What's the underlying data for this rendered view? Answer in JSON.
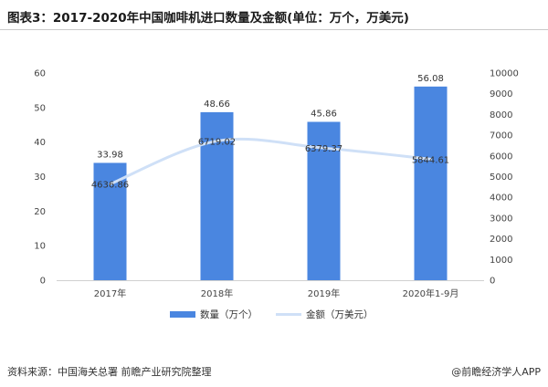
{
  "title": "图表3：2017-2020年中国咖啡机进口数量及金额(单位：万个，万美元)",
  "source": "资料来源：中国海关总署 前瞻产业研究院整理",
  "brand": "@前瞻经济学人APP",
  "colors": {
    "bar": "#4a86e0",
    "line": "#cfe0f7"
  },
  "chart_data": {
    "type": "bar",
    "categories": [
      "2017年",
      "2018年",
      "2019年",
      "2020年1-9月"
    ],
    "series": [
      {
        "name": "数量（万个）",
        "type": "bar",
        "axis": "left",
        "values": [
          33.98,
          48.66,
          45.86,
          56.08
        ],
        "labels": [
          "33.98",
          "48.66",
          "45.86",
          "56.08"
        ]
      },
      {
        "name": "金额（万美元）",
        "type": "line",
        "axis": "right",
        "values": [
          4636.86,
          6719.02,
          6379.37,
          5844.61
        ],
        "labels": [
          "4636.86",
          "6719.02",
          "6379.37",
          "5844.61"
        ]
      }
    ],
    "y_left": {
      "ylim": [
        0,
        60
      ],
      "ticks": [
        "0",
        "10",
        "20",
        "30",
        "40",
        "50",
        "60"
      ]
    },
    "y_right": {
      "ylim": [
        0,
        10000
      ],
      "ticks": [
        "0",
        "1000",
        "2000",
        "3000",
        "4000",
        "5000",
        "6000",
        "7000",
        "8000",
        "9000",
        "10000"
      ]
    },
    "legend_position": "bottom",
    "grid": false
  }
}
